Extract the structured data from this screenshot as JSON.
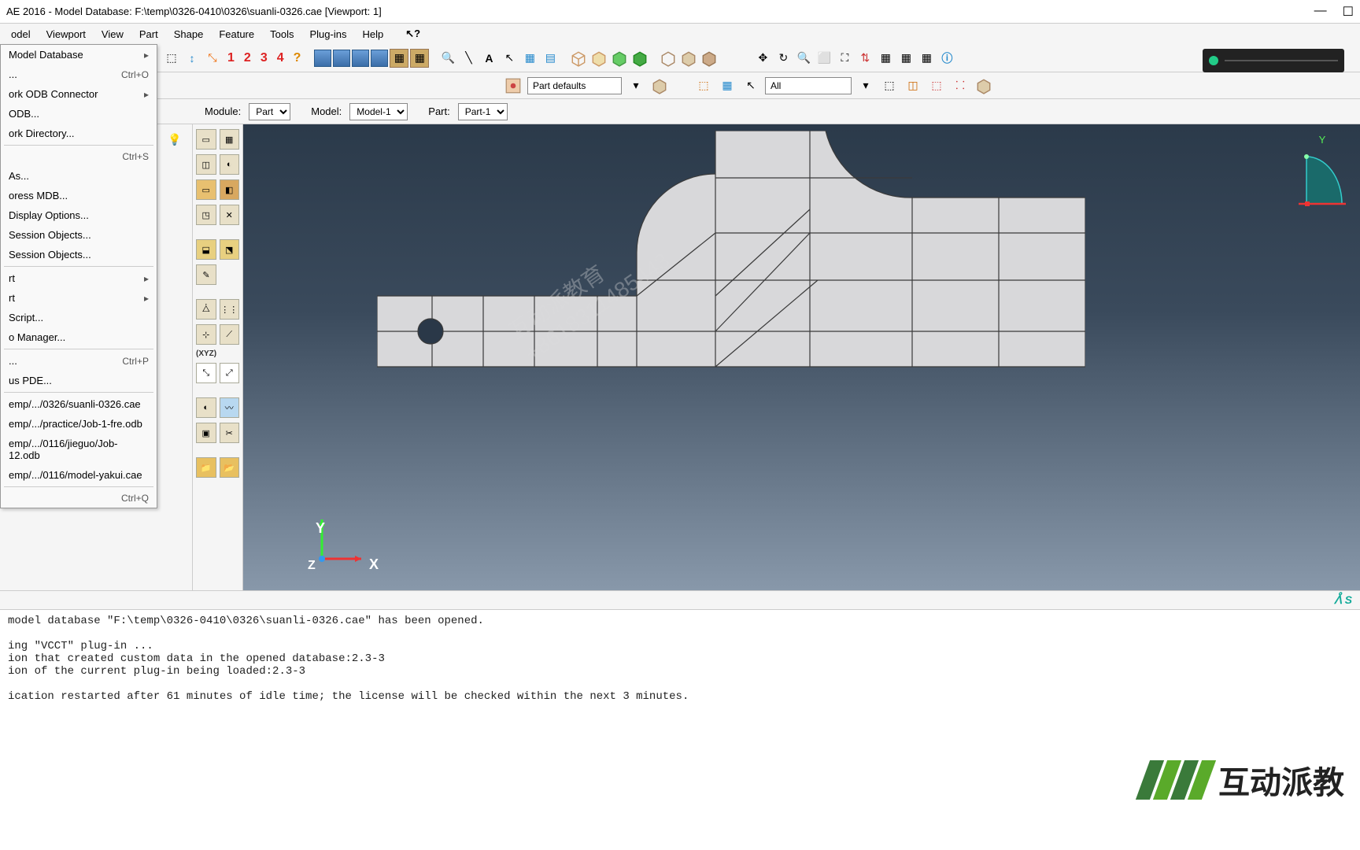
{
  "title": "AE 2016 - Model Database: F:\\temp\\0326-0410\\0326\\suanli-0326.cae [Viewport: 1]",
  "menubar": {
    "items": [
      "odel",
      "Viewport",
      "View",
      "Part",
      "Shape",
      "Feature",
      "Tools",
      "Plug-ins",
      "Help"
    ]
  },
  "datum_numbers": [
    "1",
    "2",
    "3",
    "4"
  ],
  "toolbar2": {
    "part_defaults_label": "Part defaults",
    "all_label": "All"
  },
  "context": {
    "module_label": "Module:",
    "module_value": "Part",
    "model_label": "Model:",
    "model_value": "Model-1",
    "part_label": "Part:",
    "part_value": "Part-1"
  },
  "file_menu": {
    "items": [
      {
        "label": "Model Database",
        "sub": "▸"
      },
      {
        "label": "...",
        "shortcut": "Ctrl+O"
      },
      {
        "label": "ork ODB Connector",
        "sub": "▸"
      },
      {
        "label": "ODB..."
      },
      {
        "label": "ork Directory..."
      },
      {
        "sep": true
      },
      {
        "label": "",
        "shortcut": "Ctrl+S"
      },
      {
        "label": "As..."
      },
      {
        "label": "oress MDB..."
      },
      {
        "label": "Display Options..."
      },
      {
        "label": "Session Objects..."
      },
      {
        "label": "Session Objects..."
      },
      {
        "sep": true
      },
      {
        "label": "rt",
        "sub": "▸"
      },
      {
        "label": "rt",
        "sub": "▸"
      },
      {
        "label": "Script..."
      },
      {
        "label": "o Manager..."
      },
      {
        "sep": true
      },
      {
        "label": "...",
        "shortcut": "Ctrl+P"
      },
      {
        "label": "us PDE..."
      },
      {
        "sep": true
      },
      {
        "label": "emp/.../0326/suanli-0326.cae"
      },
      {
        "label": "emp/.../practice/Job-1-fre.odb"
      },
      {
        "label": "emp/.../0116/jieguo/Job-12.odb"
      },
      {
        "label": "emp/.../0116/model-yakui.cae"
      },
      {
        "sep": true
      },
      {
        "label": "",
        "shortcut": "Ctrl+Q"
      }
    ]
  },
  "xyz_label": "(XYZ)",
  "axis": {
    "x": "X",
    "y": "Y",
    "z": "Z"
  },
  "view_axis_y": "Y",
  "watermark": {
    "line1": "互动派教育",
    "line2": "+8618311485443"
  },
  "status_right": "ᐰ S",
  "console_lines": [
    "model database \"F:\\temp\\0326-0410\\0326\\suanli-0326.cae\" has been opened.",
    "",
    "ing \"VCCT\" plug-in ...",
    "ion that created custom data in the opened database:2.3-3",
    "ion of the current plug-in being loaded:2.3-3",
    "",
    "ication restarted after 61 minutes of idle time; the license will be checked within the next 3 minutes."
  ],
  "brand_text": "互动派教",
  "brand_colors": [
    "#3a7a3a",
    "#5aaa2a",
    "#3a7a3a",
    "#5aaa2a"
  ],
  "colors": {
    "viewport_top": "#2b3a4a",
    "viewport_bottom": "#8898aa",
    "part_fill": "#d8d8da",
    "part_edge": "#3a3a3a"
  }
}
